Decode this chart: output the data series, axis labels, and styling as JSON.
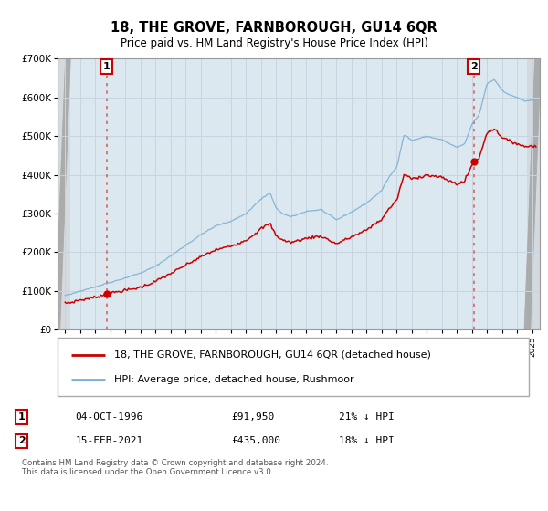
{
  "title": "18, THE GROVE, FARNBOROUGH, GU14 6QR",
  "subtitle": "Price paid vs. HM Land Registry's House Price Index (HPI)",
  "legend_line1": "18, THE GROVE, FARNBOROUGH, GU14 6QR (detached house)",
  "legend_line2": "HPI: Average price, detached house, Rushmoor",
  "ann1_label": "1",
  "ann1_date": "04-OCT-1996",
  "ann1_price": "£91,950",
  "ann1_hpi": "21% ↓ HPI",
  "ann1_x": 1996.75,
  "ann1_y": 91950,
  "ann2_label": "2",
  "ann2_date": "15-FEB-2021",
  "ann2_price": "£435,000",
  "ann2_hpi": "18% ↓ HPI",
  "ann2_x": 2021.12,
  "ann2_y": 435000,
  "red_color": "#cc0000",
  "blue_color": "#7bafd4",
  "vline_color": "#e06060",
  "grid_color": "#c8d4e0",
  "bg_color": "#dce8f0",
  "footer": "Contains HM Land Registry data © Crown copyright and database right 2024.\nThis data is licensed under the Open Government Licence v3.0.",
  "xlim": [
    1993.5,
    2025.5
  ],
  "ylim": [
    0,
    700000
  ],
  "yticks": [
    0,
    100000,
    200000,
    300000,
    400000,
    500000,
    600000,
    700000
  ],
  "ytick_labels": [
    "£0",
    "£100K",
    "£200K",
    "£300K",
    "£400K",
    "£500K",
    "£600K",
    "£700K"
  ],
  "hpi_key_years": [
    1994,
    1994.5,
    1995,
    1996,
    1997,
    1998,
    1999,
    2000,
    2001,
    2002,
    2003,
    2004,
    2005,
    2006,
    2007,
    2007.6,
    2008,
    2008.5,
    2009,
    2010,
    2011,
    2012,
    2013,
    2014,
    2015,
    2015.5,
    2016,
    2016.5,
    2017,
    2018,
    2019,
    2020,
    2020.5,
    2021,
    2021.5,
    2022,
    2022.5,
    2023,
    2023.5,
    2024,
    2024.5,
    2025
  ],
  "hpi_key_vals": [
    88000,
    92000,
    100000,
    110000,
    122000,
    133000,
    145000,
    163000,
    190000,
    218000,
    245000,
    268000,
    280000,
    300000,
    338000,
    355000,
    315000,
    300000,
    293000,
    307000,
    312000,
    285000,
    305000,
    328000,
    360000,
    395000,
    420000,
    505000,
    490000,
    500000,
    492000,
    472000,
    480000,
    532000,
    558000,
    638000,
    648000,
    620000,
    608000,
    602000,
    592000,
    595000
  ],
  "prop_scale1": 0.843,
  "prop_scale2": 0.818,
  "noise_hpi": 2500,
  "noise_prop": 4500
}
